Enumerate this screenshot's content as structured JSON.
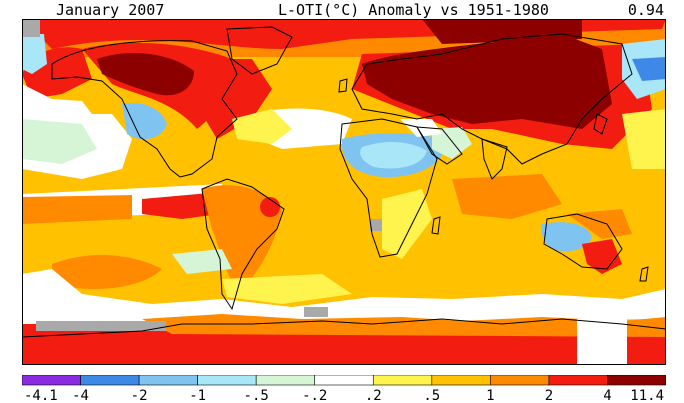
{
  "header": {
    "left": "January 2007",
    "center": "L-OTI(°C) Anomaly vs 1951-1980",
    "right": "0.94"
  },
  "legend": {
    "ticks": [
      "-4.1",
      "-4",
      "-2",
      "-1",
      "-.5",
      "-.2",
      ".2",
      ".5",
      "1",
      "2",
      "4",
      "11.4"
    ],
    "colors": [
      "#8a2be2",
      "#3e89e8",
      "#7fc3f0",
      "#a8e6f8",
      "#d6f5d6",
      "#ffffff",
      "#fff34d",
      "#ffc100",
      "#ff8a00",
      "#f21d10",
      "#8c0000"
    ]
  },
  "map": {
    "no_data_color": "#a9a9a9"
  }
}
